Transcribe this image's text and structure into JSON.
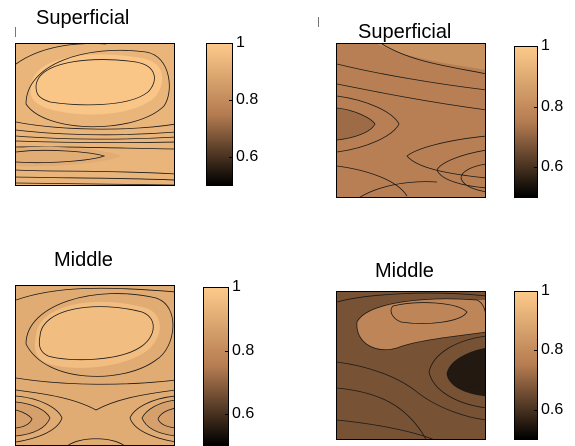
{
  "colors": {
    "light": "#fdc98a",
    "mid": "#b47c51",
    "dark": "#000000",
    "contour": "#1a1a1a"
  },
  "chart_data": [
    {
      "type": "heatmap",
      "title": "Superficial",
      "colorbar": {
        "range": [
          0.5,
          1
        ],
        "ticks": [
          "1",
          "0.8",
          "0.6"
        ]
      },
      "value_range": [
        0.88,
        0.99
      ],
      "pattern": "light field, brightest oval in upper-left, dense bands toward the bottom, dimmer lobe at lower-left"
    },
    {
      "type": "heatmap",
      "title": "Superficial",
      "colorbar": {
        "range": [
          0.5,
          1
        ],
        "ticks": [
          "1",
          "0.8",
          "0.6"
        ]
      },
      "value_range": [
        0.7,
        0.82
      ],
      "pattern": "medium field, horizontal V-shaped bands opening to the right, darkest at left-center"
    },
    {
      "type": "heatmap",
      "title": "Middle",
      "colorbar": {
        "range": [
          0.5,
          1
        ],
        "ticks": [
          "1",
          "0.8",
          "0.6"
        ]
      },
      "value_range": [
        0.85,
        0.96
      ],
      "pattern": "light field, bright oval in upper region, darker lobes at lower-left and lower-right edges"
    },
    {
      "type": "heatmap",
      "title": "Middle",
      "colorbar": {
        "range": [
          0.5,
          1
        ],
        "ticks": [
          "1",
          "0.8",
          "0.6"
        ]
      },
      "value_range": [
        0.55,
        0.78
      ],
      "pattern": "dark field, lighter bands in upper-middle, darkest pocket at right-center"
    }
  ]
}
